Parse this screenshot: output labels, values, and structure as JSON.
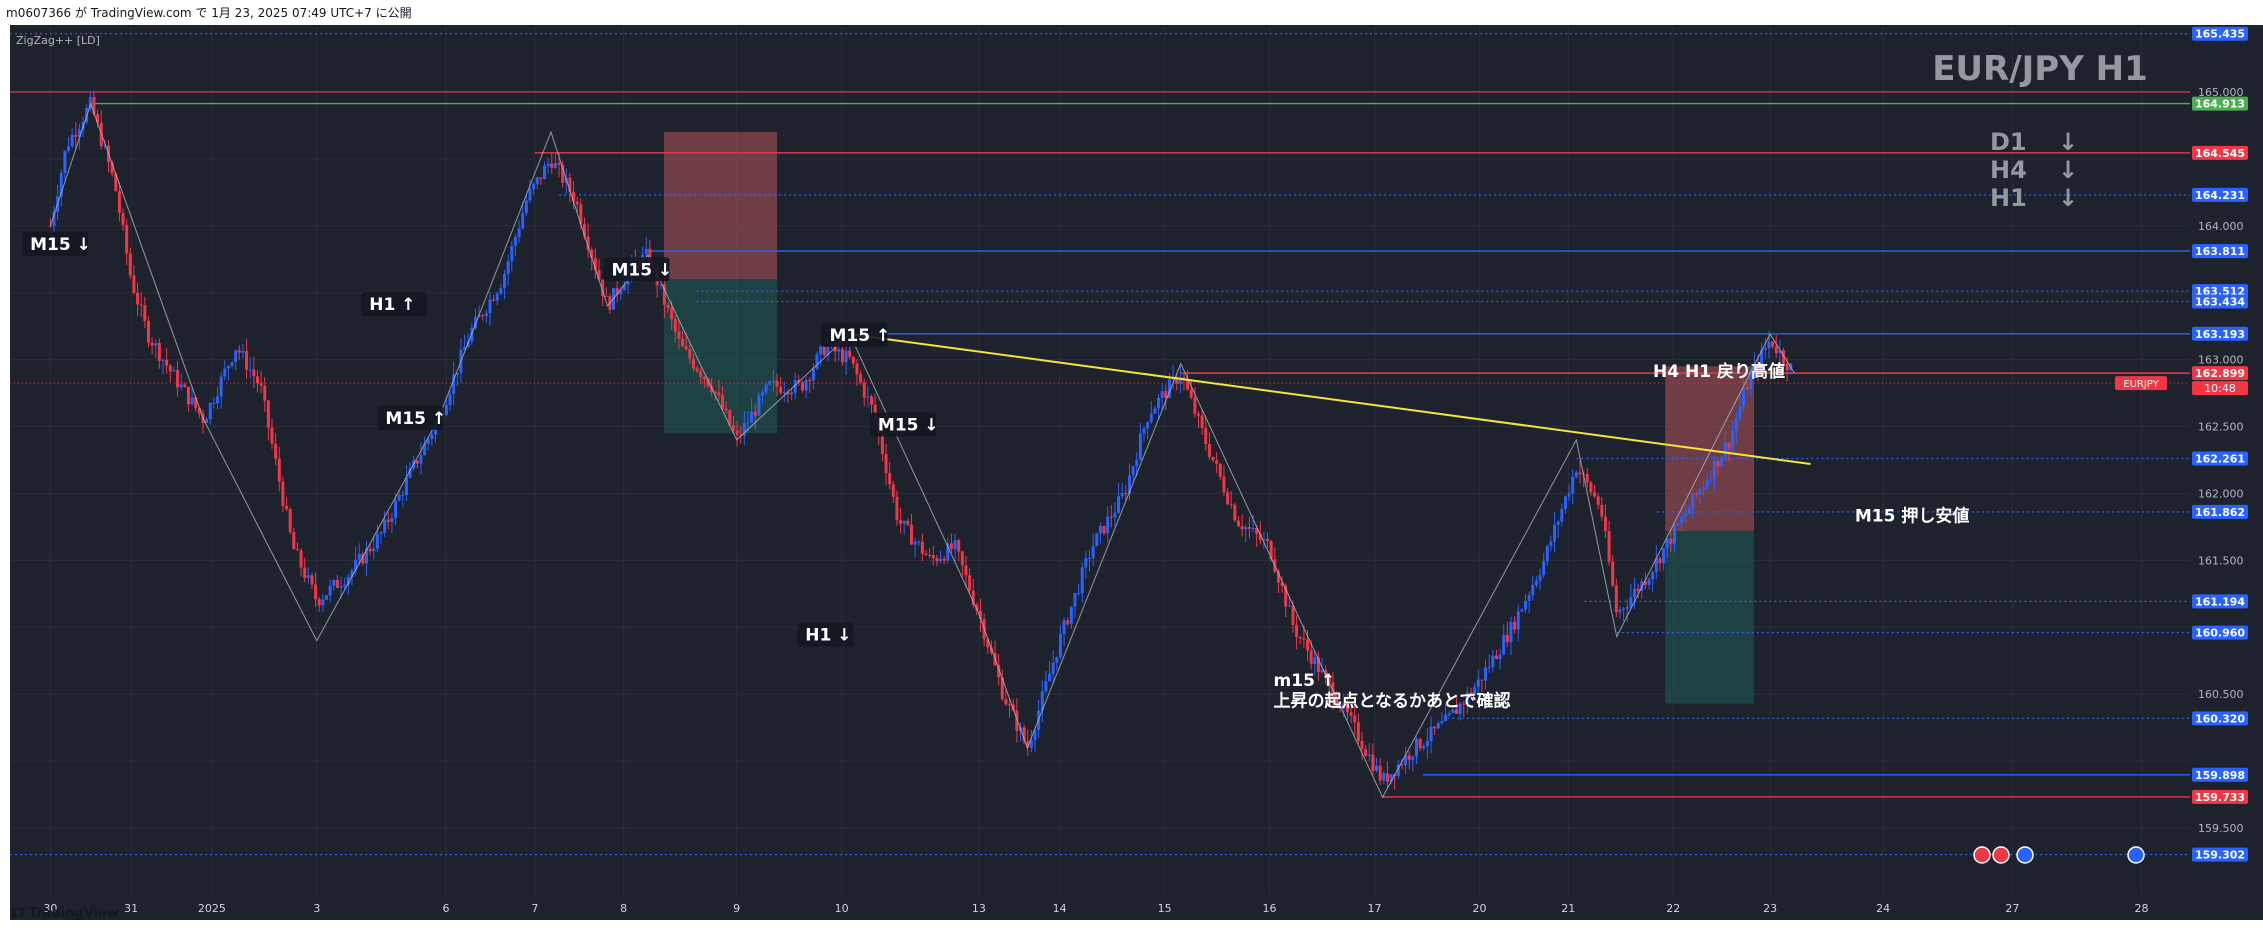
{
  "caption": "m0607366 が TradingView.com で 1月 23, 2025 07:49 UTC+7 に公開",
  "indicator_label": "ZigZag++ [LD]",
  "footer": {
    "brand": "TradingView",
    "logo_icon": "tradingview-logo-icon"
  },
  "colors": {
    "background": "#1e222d",
    "up_candle": "#2962ff",
    "down_candle": "#f23645",
    "grid": "#2a2e39",
    "red_level": "#f23645",
    "green_level": "#4caf50",
    "blue_level": "#2962ff",
    "trend_line": "#f5e33f",
    "zigzag": "#b2b5be",
    "sell_zone": "#b2535a",
    "buy_zone": "#1f5c55"
  },
  "chart_data": {
    "type": "candlestick",
    "title": "EUR/JPY H1",
    "symbol": "EURJPY",
    "timeframe": "H1",
    "last_price": 162.899,
    "countdown": "10:48",
    "y_range": [
      159.0,
      165.5
    ],
    "y_ticks": [
      159.5,
      160.0,
      160.5,
      161.0,
      161.5,
      162.0,
      162.5,
      163.0,
      163.5,
      164.0,
      164.5,
      165.0,
      165.5
    ],
    "y_tick_labels": [
      "159.500",
      "",
      "160.500",
      "",
      "161.500",
      "162.000",
      "162.500",
      "163.000",
      "",
      "164.000",
      "",
      "165.000",
      ""
    ],
    "x_ticks": [
      {
        "label": "30",
        "day": 0
      },
      {
        "label": "31",
        "day": 1
      },
      {
        "label": "2025",
        "day": 2
      },
      {
        "label": "3",
        "day": 3.3
      },
      {
        "label": "6",
        "day": 4.9
      },
      {
        "label": "7",
        "day": 6
      },
      {
        "label": "8",
        "day": 7.1
      },
      {
        "label": "9",
        "day": 8.5
      },
      {
        "label": "10",
        "day": 9.8
      },
      {
        "label": "13",
        "day": 11.5
      },
      {
        "label": "14",
        "day": 12.5
      },
      {
        "label": "15",
        "day": 13.8
      },
      {
        "label": "16",
        "day": 15.1
      },
      {
        "label": "17",
        "day": 16.4
      },
      {
        "label": "20",
        "day": 17.7
      },
      {
        "label": "21",
        "day": 18.8
      },
      {
        "label": "22",
        "day": 20.1
      },
      {
        "label": "23",
        "day": 21.3
      },
      {
        "label": "24",
        "day": 22.7
      },
      {
        "label": "27",
        "day": 24.3
      },
      {
        "label": "28",
        "day": 25.9
      }
    ],
    "zigzag_points": [
      [
        0.0,
        164.0
      ],
      [
        0.5,
        164.91
      ],
      [
        1.9,
        162.55
      ],
      [
        3.3,
        160.9
      ],
      [
        4.8,
        162.55
      ],
      [
        6.2,
        164.7
      ],
      [
        6.9,
        163.4
      ],
      [
        7.4,
        163.78
      ],
      [
        8.5,
        162.4
      ],
      [
        9.9,
        163.19
      ],
      [
        11.5,
        161.1
      ],
      [
        12.1,
        160.1
      ],
      [
        14.0,
        162.97
      ],
      [
        16.5,
        159.73
      ],
      [
        18.9,
        162.4
      ],
      [
        19.4,
        160.93
      ],
      [
        20.8,
        162.6
      ],
      [
        21.3,
        163.19
      ],
      [
        21.6,
        162.9
      ]
    ],
    "price_path": [
      [
        0.0,
        164.0
      ],
      [
        0.2,
        164.6
      ],
      [
        0.5,
        164.91
      ],
      [
        0.8,
        164.3
      ],
      [
        1.0,
        163.6
      ],
      [
        1.2,
        163.2
      ],
      [
        1.5,
        162.9
      ],
      [
        1.9,
        162.55
      ],
      [
        2.3,
        163.1
      ],
      [
        2.6,
        162.8
      ],
      [
        3.0,
        161.6
      ],
      [
        3.3,
        161.2
      ],
      [
        3.7,
        161.4
      ],
      [
        4.1,
        161.7
      ],
      [
        4.5,
        162.2
      ],
      [
        4.8,
        162.55
      ],
      [
        5.2,
        163.2
      ],
      [
        5.6,
        163.6
      ],
      [
        5.9,
        164.2
      ],
      [
        6.2,
        164.5
      ],
      [
        6.5,
        164.2
      ],
      [
        6.9,
        163.4
      ],
      [
        7.2,
        163.7
      ],
      [
        7.4,
        163.78
      ],
      [
        7.8,
        163.1
      ],
      [
        8.2,
        162.8
      ],
      [
        8.5,
        162.4
      ],
      [
        8.9,
        162.8
      ],
      [
        9.3,
        162.8
      ],
      [
        9.6,
        163.1
      ],
      [
        9.9,
        163.0
      ],
      [
        10.2,
        162.6
      ],
      [
        10.5,
        161.8
      ],
      [
        10.9,
        161.5
      ],
      [
        11.2,
        161.6
      ],
      [
        11.5,
        161.1
      ],
      [
        11.8,
        160.5
      ],
      [
        12.1,
        160.1
      ],
      [
        12.5,
        160.9
      ],
      [
        12.9,
        161.6
      ],
      [
        13.3,
        162.0
      ],
      [
        13.6,
        162.6
      ],
      [
        14.0,
        162.9
      ],
      [
        14.3,
        162.4
      ],
      [
        14.7,
        161.8
      ],
      [
        15.1,
        161.6
      ],
      [
        15.4,
        161.0
      ],
      [
        15.8,
        160.6
      ],
      [
        16.1,
        160.3
      ],
      [
        16.5,
        159.85
      ],
      [
        16.9,
        160.1
      ],
      [
        17.3,
        160.3
      ],
      [
        17.7,
        160.6
      ],
      [
        18.1,
        161.0
      ],
      [
        18.5,
        161.5
      ],
      [
        18.9,
        162.2
      ],
      [
        19.2,
        161.9
      ],
      [
        19.4,
        161.1
      ],
      [
        19.8,
        161.4
      ],
      [
        20.2,
        161.8
      ],
      [
        20.5,
        162.1
      ],
      [
        20.8,
        162.4
      ],
      [
        21.0,
        162.8
      ],
      [
        21.3,
        163.15
      ],
      [
        21.6,
        162.9
      ]
    ],
    "levels": [
      {
        "price": 165.435,
        "label": "165.435",
        "color": "#2962ff",
        "style": "dotted",
        "from_day": -0.5
      },
      {
        "price": 164.913,
        "label": "164.913",
        "color": "#4caf50",
        "style": "solid",
        "from_day": 0.5
      },
      {
        "price": 164.545,
        "label": "164.545",
        "color": "#f23645",
        "style": "solid",
        "from_day": 6.0
      },
      {
        "price": 164.231,
        "label": "164.231",
        "color": "#2962ff",
        "style": "dotted",
        "from_day": 6.3
      },
      {
        "price": 163.811,
        "label": "163.811",
        "color": "#2962ff",
        "style": "solid",
        "from_day": 7.4
      },
      {
        "price": 163.512,
        "label": "163.512",
        "color": "#2962ff",
        "style": "dotted",
        "from_day": 8.0
      },
      {
        "price": 163.434,
        "label": "163.434",
        "color": "#2962ff",
        "style": "dotted",
        "from_day": 8.0
      },
      {
        "price": 163.193,
        "label": "163.193",
        "color": "#2962ff",
        "style": "solid",
        "from_day": 9.9
      },
      {
        "price": 162.899,
        "label": "162.899",
        "color": "#f23645",
        "style": "solid",
        "from_day": 14.0
      },
      {
        "price": 162.261,
        "label": "162.261",
        "color": "#2962ff",
        "style": "dotted",
        "from_day": 18.9
      },
      {
        "price": 161.862,
        "label": "161.862",
        "color": "#2962ff",
        "style": "dotted",
        "from_day": 19.9
      },
      {
        "price": 161.194,
        "label": "161.194",
        "color": "#2962ff",
        "style": "dotted",
        "from_day": 19.0
      },
      {
        "price": 160.96,
        "label": "160.960",
        "color": "#2962ff",
        "style": "dotted",
        "from_day": 19.4
      },
      {
        "price": 160.32,
        "label": "160.320",
        "color": "#2962ff",
        "style": "dotted",
        "from_day": 17.3
      },
      {
        "price": 159.898,
        "label": "159.898",
        "color": "#2962ff",
        "style": "solid",
        "from_day": 17.0
      },
      {
        "price": 159.733,
        "label": "159.733",
        "color": "#f23645",
        "style": "solid",
        "from_day": 16.5
      },
      {
        "price": 159.302,
        "label": "159.302",
        "color": "#2962ff",
        "style": "dotted",
        "from_day": -0.5
      }
    ],
    "extra_red_line": {
      "price": 165.0,
      "from_day": -0.5
    },
    "trend_line": {
      "from": [
        9.9,
        163.19
      ],
      "to": [
        21.8,
        162.22
      ]
    },
    "zones": [
      {
        "kind": "sell",
        "from_day": 7.6,
        "to_day": 9.0,
        "top": 164.7,
        "bottom": 163.6
      },
      {
        "kind": "buy",
        "from_day": 7.6,
        "to_day": 9.0,
        "top": 163.6,
        "bottom": 162.45
      },
      {
        "kind": "sell",
        "from_day": 20.0,
        "to_day": 21.1,
        "top": 162.95,
        "bottom": 161.72
      },
      {
        "kind": "buy",
        "from_day": 20.0,
        "to_day": 21.1,
        "top": 161.72,
        "bottom": 160.43
      }
    ],
    "annotations": [
      {
        "text": "M15 ↓",
        "day": -0.3,
        "price": 163.85,
        "boxed": true
      },
      {
        "text": "H1  ↑",
        "day": 3.9,
        "price": 163.4,
        "boxed": true
      },
      {
        "text": "M15 ↓",
        "day": 6.9,
        "price": 163.66,
        "boxed": true
      },
      {
        "text": "M15 ↑",
        "day": 4.1,
        "price": 162.55,
        "boxed": true
      },
      {
        "text": "M15 ↑",
        "day": 9.6,
        "price": 163.17,
        "boxed": true
      },
      {
        "text": "M15 ↓",
        "day": 10.2,
        "price": 162.5,
        "boxed": true
      },
      {
        "text": "H1 ↓",
        "day": 9.3,
        "price": 160.93,
        "boxed": true
      },
      {
        "text": "m15 ↑",
        "day": 15.1,
        "price": 160.59,
        "boxed": false
      },
      {
        "text": "上昇の起点となるかあとで確認",
        "day": 15.1,
        "price": 160.44,
        "boxed": false
      },
      {
        "text": "H4 H1 戻り高値",
        "day": 19.8,
        "price": 162.9,
        "boxed": false
      },
      {
        "text": "M15 押し安値",
        "day": 22.3,
        "price": 161.82,
        "boxed": false
      }
    ],
    "mtf_labels": [
      {
        "text": "D1",
        "arrow": "↓"
      },
      {
        "text": "H4",
        "arrow": "↓"
      },
      {
        "text": "H1",
        "arrow": "↓"
      }
    ],
    "event_markers": [
      "event-red-icon",
      "event-red-icon",
      "event-blue-icon",
      "event-blue-icon"
    ]
  }
}
